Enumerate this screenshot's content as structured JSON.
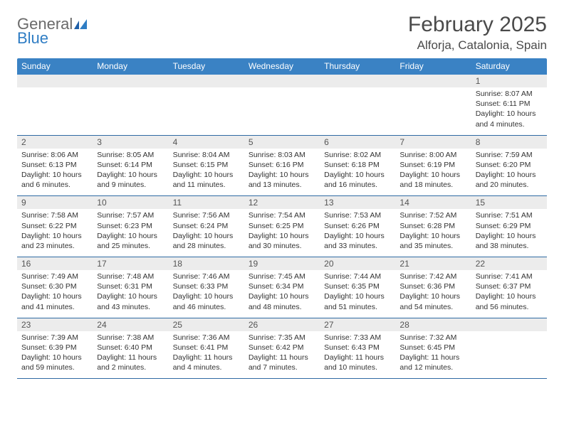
{
  "brand": {
    "word1": "General",
    "word2": "Blue"
  },
  "title": "February 2025",
  "location": "Alforja, Catalonia, Spain",
  "colors": {
    "header_bg": "#3a82c4",
    "header_text": "#ffffff",
    "daynum_bg": "#ececec",
    "rule": "#2f6aa3",
    "logo_gray": "#6a6a6a",
    "logo_blue": "#2f7dc4"
  },
  "dayHeaders": [
    "Sunday",
    "Monday",
    "Tuesday",
    "Wednesday",
    "Thursday",
    "Friday",
    "Saturday"
  ],
  "weeks": [
    {
      "nums": [
        "",
        "",
        "",
        "",
        "",
        "",
        "1"
      ],
      "cells": [
        {},
        {},
        {},
        {},
        {},
        {},
        {
          "sunrise": "Sunrise: 8:07 AM",
          "sunset": "Sunset: 6:11 PM",
          "daylight": "Daylight: 10 hours and 4 minutes."
        }
      ]
    },
    {
      "nums": [
        "2",
        "3",
        "4",
        "5",
        "6",
        "7",
        "8"
      ],
      "cells": [
        {
          "sunrise": "Sunrise: 8:06 AM",
          "sunset": "Sunset: 6:13 PM",
          "daylight": "Daylight: 10 hours and 6 minutes."
        },
        {
          "sunrise": "Sunrise: 8:05 AM",
          "sunset": "Sunset: 6:14 PM",
          "daylight": "Daylight: 10 hours and 9 minutes."
        },
        {
          "sunrise": "Sunrise: 8:04 AM",
          "sunset": "Sunset: 6:15 PM",
          "daylight": "Daylight: 10 hours and 11 minutes."
        },
        {
          "sunrise": "Sunrise: 8:03 AM",
          "sunset": "Sunset: 6:16 PM",
          "daylight": "Daylight: 10 hours and 13 minutes."
        },
        {
          "sunrise": "Sunrise: 8:02 AM",
          "sunset": "Sunset: 6:18 PM",
          "daylight": "Daylight: 10 hours and 16 minutes."
        },
        {
          "sunrise": "Sunrise: 8:00 AM",
          "sunset": "Sunset: 6:19 PM",
          "daylight": "Daylight: 10 hours and 18 minutes."
        },
        {
          "sunrise": "Sunrise: 7:59 AM",
          "sunset": "Sunset: 6:20 PM",
          "daylight": "Daylight: 10 hours and 20 minutes."
        }
      ]
    },
    {
      "nums": [
        "9",
        "10",
        "11",
        "12",
        "13",
        "14",
        "15"
      ],
      "cells": [
        {
          "sunrise": "Sunrise: 7:58 AM",
          "sunset": "Sunset: 6:22 PM",
          "daylight": "Daylight: 10 hours and 23 minutes."
        },
        {
          "sunrise": "Sunrise: 7:57 AM",
          "sunset": "Sunset: 6:23 PM",
          "daylight": "Daylight: 10 hours and 25 minutes."
        },
        {
          "sunrise": "Sunrise: 7:56 AM",
          "sunset": "Sunset: 6:24 PM",
          "daylight": "Daylight: 10 hours and 28 minutes."
        },
        {
          "sunrise": "Sunrise: 7:54 AM",
          "sunset": "Sunset: 6:25 PM",
          "daylight": "Daylight: 10 hours and 30 minutes."
        },
        {
          "sunrise": "Sunrise: 7:53 AM",
          "sunset": "Sunset: 6:26 PM",
          "daylight": "Daylight: 10 hours and 33 minutes."
        },
        {
          "sunrise": "Sunrise: 7:52 AM",
          "sunset": "Sunset: 6:28 PM",
          "daylight": "Daylight: 10 hours and 35 minutes."
        },
        {
          "sunrise": "Sunrise: 7:51 AM",
          "sunset": "Sunset: 6:29 PM",
          "daylight": "Daylight: 10 hours and 38 minutes."
        }
      ]
    },
    {
      "nums": [
        "16",
        "17",
        "18",
        "19",
        "20",
        "21",
        "22"
      ],
      "cells": [
        {
          "sunrise": "Sunrise: 7:49 AM",
          "sunset": "Sunset: 6:30 PM",
          "daylight": "Daylight: 10 hours and 41 minutes."
        },
        {
          "sunrise": "Sunrise: 7:48 AM",
          "sunset": "Sunset: 6:31 PM",
          "daylight": "Daylight: 10 hours and 43 minutes."
        },
        {
          "sunrise": "Sunrise: 7:46 AM",
          "sunset": "Sunset: 6:33 PM",
          "daylight": "Daylight: 10 hours and 46 minutes."
        },
        {
          "sunrise": "Sunrise: 7:45 AM",
          "sunset": "Sunset: 6:34 PM",
          "daylight": "Daylight: 10 hours and 48 minutes."
        },
        {
          "sunrise": "Sunrise: 7:44 AM",
          "sunset": "Sunset: 6:35 PM",
          "daylight": "Daylight: 10 hours and 51 minutes."
        },
        {
          "sunrise": "Sunrise: 7:42 AM",
          "sunset": "Sunset: 6:36 PM",
          "daylight": "Daylight: 10 hours and 54 minutes."
        },
        {
          "sunrise": "Sunrise: 7:41 AM",
          "sunset": "Sunset: 6:37 PM",
          "daylight": "Daylight: 10 hours and 56 minutes."
        }
      ]
    },
    {
      "nums": [
        "23",
        "24",
        "25",
        "26",
        "27",
        "28",
        ""
      ],
      "cells": [
        {
          "sunrise": "Sunrise: 7:39 AM",
          "sunset": "Sunset: 6:39 PM",
          "daylight": "Daylight: 10 hours and 59 minutes."
        },
        {
          "sunrise": "Sunrise: 7:38 AM",
          "sunset": "Sunset: 6:40 PM",
          "daylight": "Daylight: 11 hours and 2 minutes."
        },
        {
          "sunrise": "Sunrise: 7:36 AM",
          "sunset": "Sunset: 6:41 PM",
          "daylight": "Daylight: 11 hours and 4 minutes."
        },
        {
          "sunrise": "Sunrise: 7:35 AM",
          "sunset": "Sunset: 6:42 PM",
          "daylight": "Daylight: 11 hours and 7 minutes."
        },
        {
          "sunrise": "Sunrise: 7:33 AM",
          "sunset": "Sunset: 6:43 PM",
          "daylight": "Daylight: 11 hours and 10 minutes."
        },
        {
          "sunrise": "Sunrise: 7:32 AM",
          "sunset": "Sunset: 6:45 PM",
          "daylight": "Daylight: 11 hours and 12 minutes."
        },
        {}
      ]
    }
  ]
}
